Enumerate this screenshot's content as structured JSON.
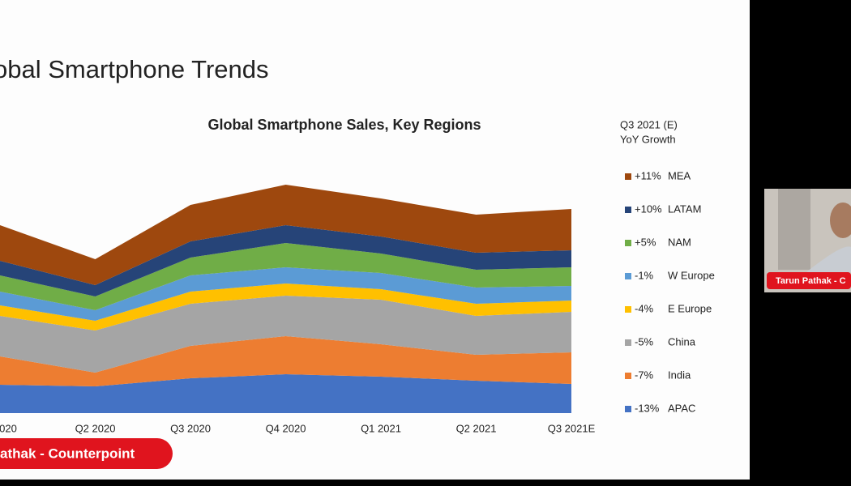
{
  "slide_title": "obal Smartphone Trends",
  "speaker_banner": "athak - Counterpoint",
  "webcam_label": "Tarun Pathak - C",
  "chart_data": {
    "type": "stacked-area",
    "title": "Global Smartphone Sales, Key Regions",
    "legend_title": [
      "Q3 2021 (E)",
      "YoY Growth"
    ],
    "categories": [
      "020",
      "Q2 2020",
      "Q3 2020",
      "Q4 2020",
      "Q1 2021",
      "Q2 2021",
      "Q3 2021E"
    ],
    "ylim": [
      0,
      320
    ],
    "series": [
      {
        "name": "APAC",
        "growth": "-13%",
        "color": "#4472c4",
        "values": [
          35,
          33,
          43,
          48,
          45,
          40,
          36
        ]
      },
      {
        "name": "India",
        "growth": "-7%",
        "color": "#ed7d31",
        "values": [
          35,
          17,
          40,
          47,
          40,
          32,
          39
        ]
      },
      {
        "name": "China",
        "growth": "-5%",
        "color": "#a5a5a5",
        "values": [
          50,
          52,
          52,
          50,
          55,
          48,
          50
        ]
      },
      {
        "name": "E Europe",
        "growth": "-4%",
        "color": "#ffc000",
        "values": [
          13,
          12,
          15,
          15,
          13,
          15,
          14
        ]
      },
      {
        "name": "W Europe",
        "growth": "-1%",
        "color": "#5b9bd5",
        "values": [
          17,
          13,
          20,
          20,
          20,
          20,
          18
        ]
      },
      {
        "name": "NAM",
        "growth": "+5%",
        "color": "#70ad47",
        "values": [
          20,
          17,
          22,
          30,
          24,
          22,
          23
        ]
      },
      {
        "name": "LATAM",
        "growth": "+10%",
        "color": "#264478",
        "values": [
          18,
          14,
          20,
          22,
          21,
          21,
          21
        ]
      },
      {
        "name": "MEA",
        "growth": "+11%",
        "color": "#9e480e",
        "values": [
          44,
          32,
          45,
          50,
          47,
          47,
          51
        ]
      }
    ]
  }
}
